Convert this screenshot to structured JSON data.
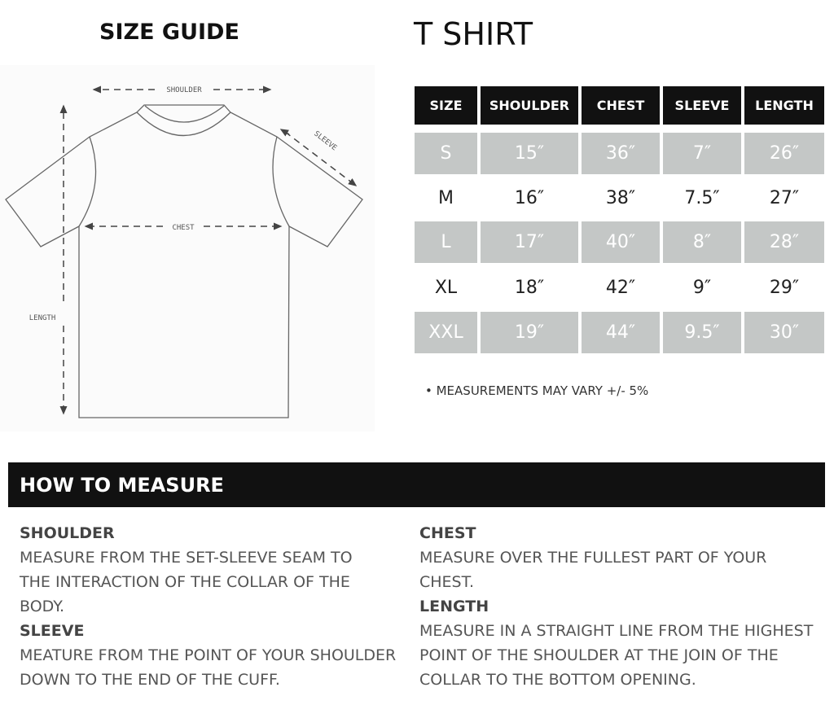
{
  "header": {
    "guide_title": "SIZE GUIDE",
    "product_title": "T SHIRT"
  },
  "diagram": {
    "labels": {
      "shoulder": "SHOULDER",
      "sleeve": "SLEEVE",
      "chest": "CHEST",
      "length": "LENGTH"
    }
  },
  "table": {
    "columns": [
      "SIZE",
      "SHOULDER",
      "CHEST",
      "SLEEVE",
      "LENGTH"
    ],
    "rows": [
      [
        "S",
        "15″",
        "36″",
        "7″",
        "26″"
      ],
      [
        "M",
        "16″",
        "38″",
        "7.5″",
        "27″"
      ],
      [
        "L",
        "17″",
        "40″",
        "8″",
        "28″"
      ],
      [
        "XL",
        "18″",
        "42″",
        "9″",
        "29″"
      ],
      [
        "XXL",
        "19″",
        "44″",
        "9.5″",
        "30″"
      ]
    ],
    "colors": {
      "header": "#111111",
      "stripe": "#c4c7c6"
    }
  },
  "note": "•  MEASUREMENTS MAY VARY +/- 5%",
  "how_to": {
    "title": "HOW TO MEASURE",
    "shoulder": {
      "title": "SHOULDER",
      "text": "MEASURE FROM THE SET-SLEEVE SEAM TO THE INTERACTION OF THE COLLAR OF THE BODY."
    },
    "sleeve": {
      "title": "SLEEVE",
      "text": "MEATURE FROM THE POINT OF YOUR SHOULDER DOWN TO THE END OF THE CUFF."
    },
    "chest": {
      "title": "CHEST",
      "text": "MEASURE OVER THE FULLEST PART OF YOUR CHEST."
    },
    "length": {
      "title": "LENGTH",
      "text": "MEASURE IN A STRAIGHT LINE FROM THE HIGHEST POINT OF THE SHOULDER AT THE JOIN OF THE COLLAR TO THE BOTTOM OPENING."
    }
  }
}
